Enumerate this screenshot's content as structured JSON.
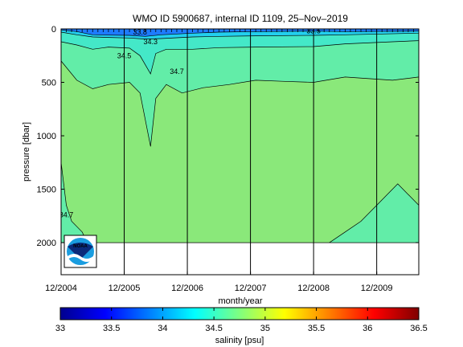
{
  "chart_data": {
    "type": "heatmap",
    "title": "WMO ID 5900687, internal ID 1109, 25–Nov–2019",
    "xlabel": "month/year",
    "ylabel": "pressure [dbar]",
    "x_ticks": [
      "12/2004",
      "12/2005",
      "12/2006",
      "12/2007",
      "12/2008",
      "12/2009"
    ],
    "y_ticks": [
      0,
      500,
      1000,
      1500,
      2000
    ],
    "y_tick_labels": [
      "0",
      "500",
      "1000",
      "1500",
      "2000"
    ],
    "ylim": [
      2300,
      0
    ],
    "y_reversed": true,
    "x_range": [
      "2004-12",
      "2010-08"
    ],
    "profile_max_pressure": 2000,
    "contour_labels": [
      {
        "text": "33.8",
        "date": "2006-03",
        "pressure": 30
      },
      {
        "text": "34.3",
        "date": "2006-05",
        "pressure": 120
      },
      {
        "text": "34.5",
        "date": "2005-12",
        "pressure": 250
      },
      {
        "text": "34.7",
        "date": "2006-10",
        "pressure": 400
      },
      {
        "text": "34.7",
        "date": "2005-01",
        "pressure": 1740
      },
      {
        "text": "33.5",
        "date": "2008-12",
        "pressure": 20
      }
    ],
    "layers": [
      {
        "salinity_range": [
          33.4,
          34.0
        ],
        "color": "#1e7bff",
        "boundary": [
          [
            "2004-12",
            10
          ],
          [
            "2005-03",
            25
          ],
          [
            "2005-06",
            55
          ],
          [
            "2005-09",
            58
          ],
          [
            "2006-01",
            60
          ],
          [
            "2006-04",
            70
          ],
          [
            "2006-07",
            55
          ],
          [
            "2007-01",
            40
          ],
          [
            "2007-06",
            30
          ],
          [
            "2008-01",
            25
          ],
          [
            "2008-12",
            20
          ],
          [
            "2009-06",
            25
          ],
          [
            "2010-08",
            20
          ]
        ]
      },
      {
        "salinity_range": [
          34.0,
          34.3
        ],
        "color": "#22cfee",
        "boundary": [
          [
            "2004-12",
            30
          ],
          [
            "2005-03",
            55
          ],
          [
            "2005-06",
            75
          ],
          [
            "2005-09",
            80
          ],
          [
            "2006-01",
            85
          ],
          [
            "2006-04",
            95
          ],
          [
            "2006-07",
            90
          ],
          [
            "2007-01",
            75
          ],
          [
            "2007-06",
            70
          ],
          [
            "2008-01",
            65
          ],
          [
            "2008-12",
            60
          ],
          [
            "2009-06",
            55
          ],
          [
            "2010-08",
            40
          ]
        ]
      },
      {
        "salinity_range": [
          34.3,
          34.5
        ],
        "color": "#44e8c8",
        "boundary": [
          [
            "2004-12",
            120
          ],
          [
            "2005-03",
            150
          ],
          [
            "2005-06",
            190
          ],
          [
            "2005-09",
            170
          ],
          [
            "2006-01",
            180
          ],
          [
            "2006-03",
            250
          ],
          [
            "2006-05",
            420
          ],
          [
            "2006-06",
            230
          ],
          [
            "2006-08",
            190
          ],
          [
            "2007-01",
            190
          ],
          [
            "2007-06",
            175
          ],
          [
            "2008-01",
            170
          ],
          [
            "2008-12",
            165
          ],
          [
            "2009-06",
            140
          ],
          [
            "2010-03",
            120
          ],
          [
            "2010-08",
            110
          ]
        ]
      },
      {
        "salinity_range": [
          34.5,
          34.7
        ],
        "color": "#62eda8",
        "boundary": [
          [
            "2004-12",
            300
          ],
          [
            "2005-03",
            480
          ],
          [
            "2005-06",
            560
          ],
          [
            "2005-09",
            520
          ],
          [
            "2006-01",
            500
          ],
          [
            "2006-03",
            600
          ],
          [
            "2006-05",
            1100
          ],
          [
            "2006-06",
            650
          ],
          [
            "2006-08",
            520
          ],
          [
            "2006-11",
            600
          ],
          [
            "2007-03",
            550
          ],
          [
            "2007-08",
            520
          ],
          [
            "2008-01",
            480
          ],
          [
            "2008-06",
            490
          ],
          [
            "2008-12",
            500
          ],
          [
            "2009-06",
            450
          ],
          [
            "2010-03",
            480
          ],
          [
            "2010-08",
            450
          ]
        ]
      },
      {
        "salinity_range": [
          34.7,
          34.9
        ],
        "color": "#8ae87a",
        "boundary": [
          [
            "2004-12",
            2000
          ],
          [
            "2010-08",
            2000
          ]
        ]
      }
    ],
    "deep_patches": [
      {
        "salinity_range": [
          34.5,
          34.7
        ],
        "color": "#62eda8",
        "outline": [
          [
            "2004-12",
            1250
          ],
          [
            "2005-01",
            1650
          ],
          [
            "2005-02",
            1800
          ],
          [
            "2005-04",
            1900
          ],
          [
            "2005-05",
            2000
          ],
          [
            "2004-12",
            2000
          ]
        ]
      },
      {
        "salinity_range": [
          34.5,
          34.7
        ],
        "color": "#62eda8",
        "outline": [
          [
            "2009-03",
            2000
          ],
          [
            "2009-06",
            1900
          ],
          [
            "2009-09",
            1800
          ],
          [
            "2010-01",
            1600
          ],
          [
            "2010-04",
            1450
          ],
          [
            "2010-08",
            1650
          ],
          [
            "2010-08",
            2000
          ]
        ]
      }
    ],
    "colorbar": {
      "label": "salinity [psu]",
      "range": [
        33,
        36.5
      ],
      "ticks": [
        "33",
        "33.5",
        "34",
        "34.5",
        "35",
        "35.5",
        "36",
        "36.5"
      ],
      "colormap": "jet"
    },
    "grid": false
  },
  "logo": {
    "text": "NOAA"
  }
}
